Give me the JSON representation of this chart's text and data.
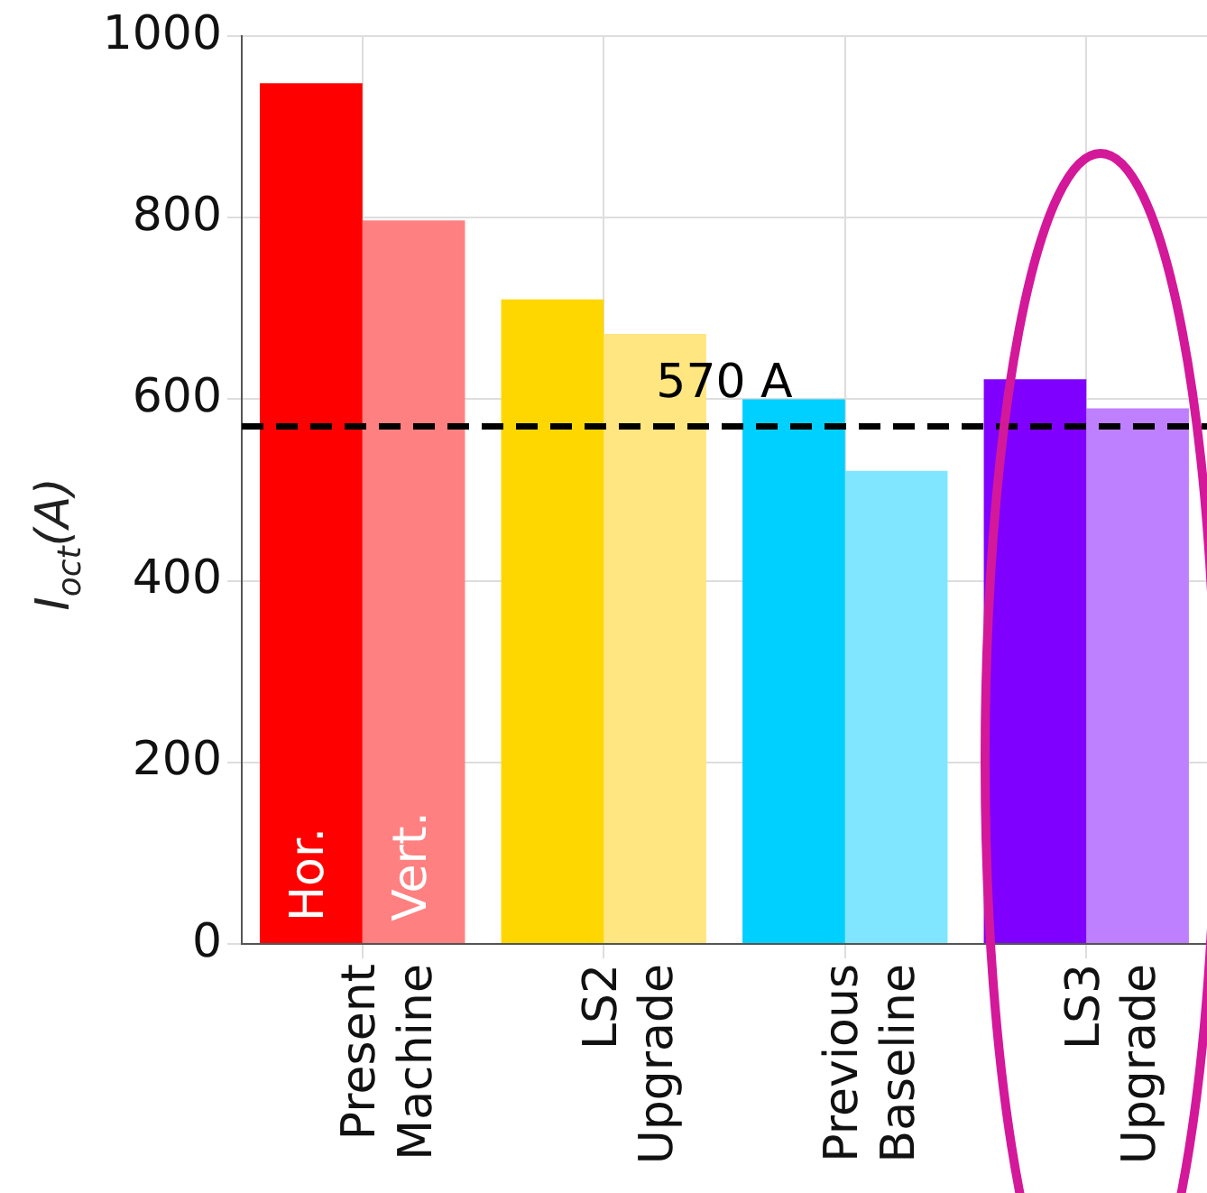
{
  "chart_data": {
    "type": "bar",
    "categories": [
      "Present\nMachine",
      "LS2\nUpgrade",
      "Previous\nBaseline",
      "LS3\nUpgrade"
    ],
    "series": [
      {
        "name": "Hor.",
        "colors": [
          "#ff0000",
          "#ffd700",
          "#00d0ff",
          "#8000ff"
        ],
        "values": [
          948,
          710,
          600,
          622
        ]
      },
      {
        "name": "Vert.",
        "colors": [
          "#ff8080",
          "#ffe680",
          "#80e6ff",
          "#bf80ff"
        ],
        "values": [
          797,
          672,
          521,
          590
        ]
      }
    ],
    "ylabel": "I$_{oct}$(A)",
    "ylim": [
      0,
      1000
    ],
    "yticks": [
      0,
      200,
      400,
      600,
      800,
      1000
    ],
    "ref_lines": [
      {
        "axis": "y",
        "value": 570,
        "label": "570 A",
        "color": "#000000",
        "line_style": "dashed"
      }
    ],
    "grid": true,
    "legend": false
  }
}
